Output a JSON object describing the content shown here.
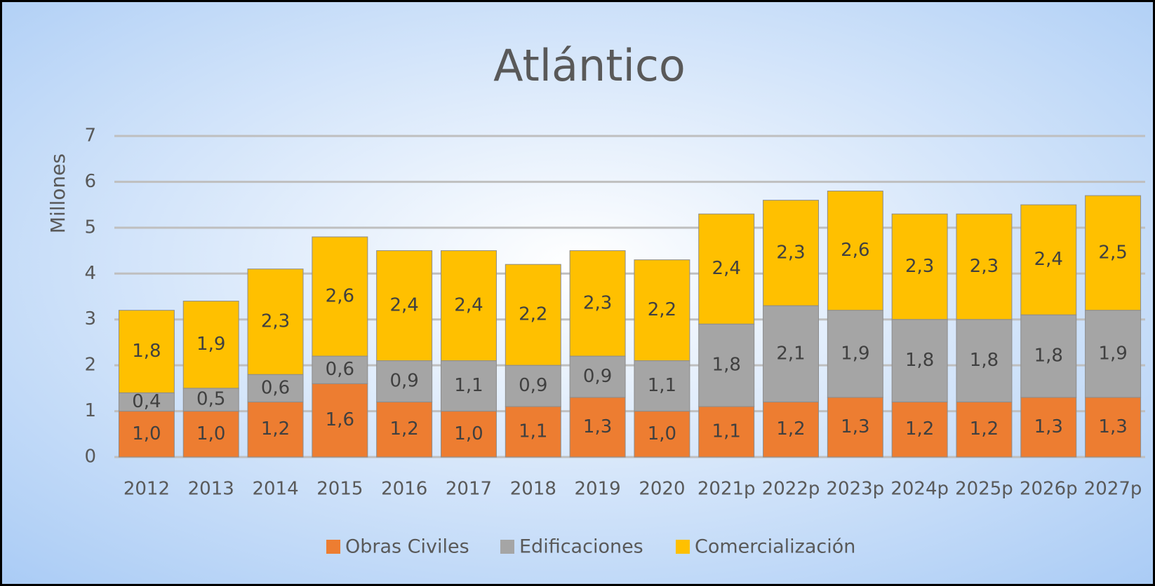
{
  "chart_data": {
    "type": "stacked_bar",
    "title": "Atlántico",
    "y_label": "Millones",
    "categories": [
      "2012",
      "2013",
      "2014",
      "2015",
      "2016",
      "2017",
      "2018",
      "2019",
      "2020",
      "2021p",
      "2022p",
      "2023p",
      "2024p",
      "2025p",
      "2026p",
      "2027p"
    ],
    "series": [
      {
        "name": "Obras Civiles",
        "color": "#ED7D31",
        "values": [
          1.0,
          1.0,
          1.2,
          1.6,
          1.2,
          1.0,
          1.1,
          1.3,
          1.0,
          1.1,
          1.2,
          1.3,
          1.2,
          1.2,
          1.3,
          1.3
        ],
        "value_labels": [
          "1,0",
          "1,0",
          "1,2",
          "1,6",
          "1,2",
          "1,0",
          "1,1",
          "1,3",
          "1,0",
          "1,1",
          "1,2",
          "1,3",
          "1,2",
          "1,2",
          "1,3",
          "1,3"
        ]
      },
      {
        "name": "Edificaciones",
        "color": "#A5A5A5",
        "values": [
          0.4,
          0.5,
          0.6,
          0.6,
          0.9,
          1.1,
          0.9,
          0.9,
          1.1,
          1.8,
          2.1,
          1.9,
          1.8,
          1.8,
          1.8,
          1.9
        ],
        "value_labels": [
          "0,4",
          "0,5",
          "0,6",
          "0,6",
          "0,9",
          "1,1",
          "0,9",
          "0,9",
          "1,1",
          "1,8",
          "2,1",
          "1,9",
          "1,8",
          "1,8",
          "1,8",
          "1,9"
        ]
      },
      {
        "name": "Comercialización",
        "color": "#FFC000",
        "values": [
          1.8,
          1.9,
          2.3,
          2.6,
          2.4,
          2.4,
          2.2,
          2.3,
          2.2,
          2.4,
          2.3,
          2.6,
          2.3,
          2.3,
          2.4,
          2.5
        ],
        "value_labels": [
          "1,8",
          "1,9",
          "2,3",
          "2,6",
          "2,4",
          "2,4",
          "2,2",
          "2,3",
          "2,2",
          "2,4",
          "2,3",
          "2,6",
          "2,3",
          "2,3",
          "2,4",
          "2,5"
        ]
      }
    ],
    "ylim": [
      0,
      7
    ],
    "yticks": [
      0,
      1,
      2,
      3,
      4,
      5,
      6,
      7
    ],
    "grid": true,
    "legend": "bottom"
  }
}
